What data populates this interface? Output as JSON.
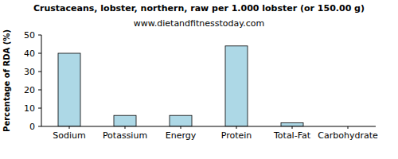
{
  "chart_data": {
    "type": "bar",
    "title": "Crustaceans, lobster, northern, raw per 1.000 lobster (or 150.00 g)",
    "subtitle": "www.dietandfitnesstoday.com",
    "y_label": "Percentage of RDA (%)",
    "categories": [
      "Sodium",
      "Potassium",
      "Energy",
      "Protein",
      "Total-Fat",
      "Carbohydrate"
    ],
    "values": [
      40,
      6,
      6,
      44,
      2,
      0
    ],
    "color": "#add8e6",
    "ylim": [
      0,
      50
    ],
    "yticks": [
      0,
      10,
      20,
      30,
      40,
      50
    ],
    "grid": false
  }
}
